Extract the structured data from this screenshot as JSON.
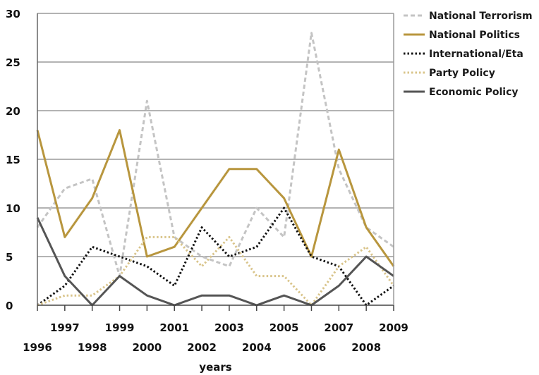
{
  "chart_data": {
    "type": "line",
    "xlabel": "years",
    "ylabel": "",
    "ylim": [
      0,
      30
    ],
    "yticks": [
      0,
      5,
      10,
      15,
      20,
      25,
      30
    ],
    "grid": "horizontal",
    "legend_position": "top-right",
    "x": [
      "1996",
      "1997",
      "1998",
      "1999",
      "2000",
      "2001",
      "2002",
      "2003",
      "2004",
      "2005",
      "2006",
      "2007",
      "2008",
      "2009"
    ],
    "series": [
      {
        "name": "National Terrorism",
        "color": "#c4c4c4",
        "style": "dashed",
        "values": [
          8,
          12,
          13,
          3,
          21,
          7,
          5,
          4,
          10,
          7,
          28,
          14,
          8,
          6
        ]
      },
      {
        "name": "National Politics",
        "color": "#b8963e",
        "style": "solid",
        "values": [
          18,
          7,
          11,
          18,
          5,
          6,
          10,
          14,
          14,
          11,
          5,
          16,
          8,
          4
        ]
      },
      {
        "name": "International/Eta",
        "color": "#111111",
        "style": "dotted",
        "values": [
          0,
          2,
          6,
          5,
          4,
          2,
          8,
          5,
          6,
          10,
          5,
          4,
          0,
          2
        ]
      },
      {
        "name": "Party Policy",
        "color": "#d9c48a",
        "style": "dotted",
        "values": [
          0,
          1,
          1,
          3,
          7,
          7,
          4,
          7,
          3,
          3,
          0,
          4,
          6,
          2
        ]
      },
      {
        "name": "Economic Policy",
        "color": "#555555",
        "style": "solid",
        "values": [
          9,
          3,
          0,
          3,
          1,
          0,
          1,
          1,
          0,
          1,
          0,
          2,
          5,
          3
        ]
      }
    ]
  }
}
